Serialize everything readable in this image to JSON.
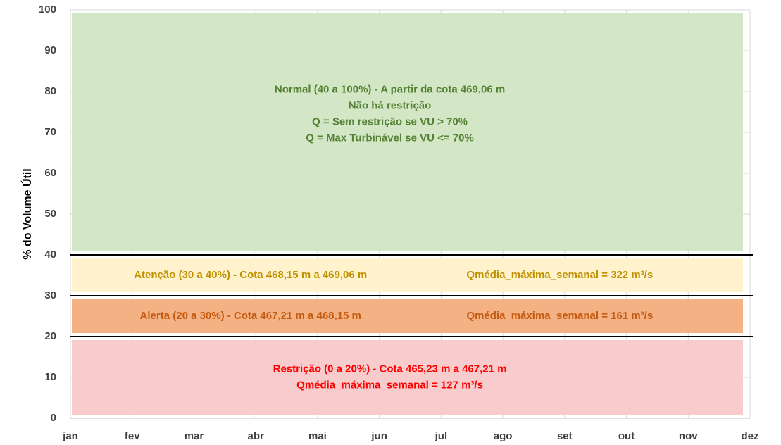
{
  "chart_data": {
    "type": "band",
    "y_label": "% do Volume Útil",
    "x": [
      "jan",
      "fev",
      "mar",
      "abr",
      "mai",
      "jun",
      "jul",
      "ago",
      "set",
      "out",
      "nov",
      "dez"
    ],
    "ylim": [
      0,
      100
    ],
    "yticks": [
      0,
      10,
      20,
      30,
      40,
      50,
      60,
      70,
      80,
      90,
      100
    ],
    "grid": true,
    "thresholds": [
      40,
      30,
      20
    ],
    "threshold_color": "#000000",
    "bands": [
      {
        "ymin": 40,
        "ymax": 100,
        "color": "#d3e7c6",
        "text_color": "#548235",
        "layout": "stack",
        "texts": [
          "Normal (40 a 100%) - A partir da cota 469,06 m",
          "Não há restrição",
          "Q = Sem restrição se VU > 70%",
          "Q = Max Turbinável se VU <= 70%"
        ]
      },
      {
        "ymin": 30,
        "ymax": 40,
        "color": "#fff2cc",
        "text_color": "#bf9000",
        "layout": "row",
        "texts": [
          "Atenção (30 a 40%) - Cota 468,15 m a 469,06 m",
          "Qmédia_máxima_semanal  = 322 m³/s"
        ]
      },
      {
        "ymin": 20,
        "ymax": 30,
        "color": "#f4b183",
        "text_color": "#c55a11",
        "layout": "row",
        "texts": [
          "Alerta (20 a 30%) - Cota 467,21 m a 468,15 m",
          "Qmédia_máxima_semanal  = 161 m³/s"
        ]
      },
      {
        "ymin": 0,
        "ymax": 20,
        "color": "#f8cbcc",
        "text_color": "#ff0000",
        "layout": "stack",
        "texts": [
          "Restrição (0 a 20%) - Cota 465,23 m a 467,21 m",
          "Qmédia_máxima_semanal  = 127 m³/s"
        ]
      }
    ]
  }
}
